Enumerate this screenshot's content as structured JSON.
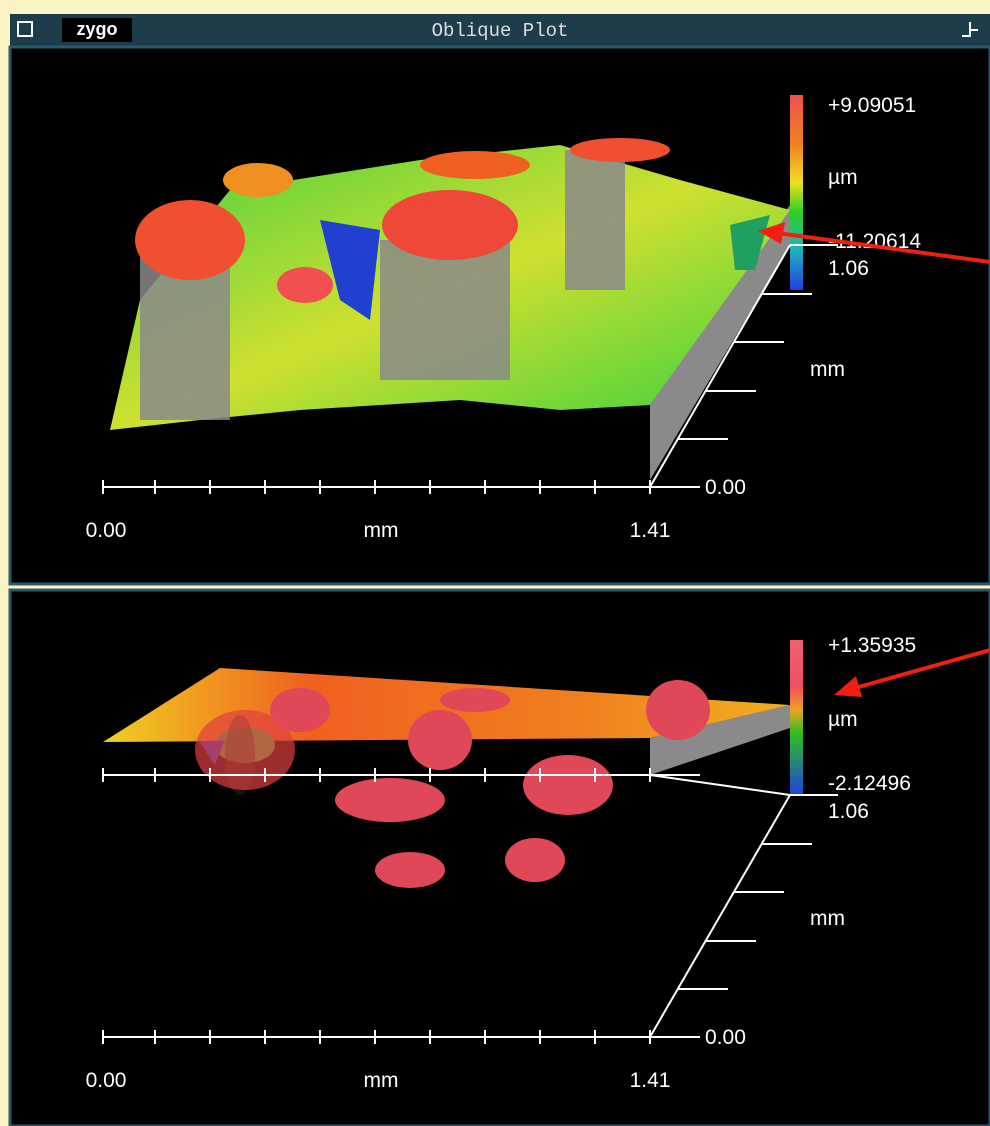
{
  "window": {
    "logo": "zygo",
    "title": "Oblique Plot"
  },
  "panels": [
    {
      "scale_max": "+9.09051",
      "scale_unit": "µm",
      "scale_min": "-11.20614",
      "y_max": "1.06",
      "y_unit": "mm",
      "y_min": "0.00",
      "x_min": "0.00",
      "x_unit": "mm",
      "x_max": "1.41"
    },
    {
      "scale_max": "+1.35935",
      "scale_unit": "µm",
      "scale_min": "-2.12496",
      "y_max": "1.06",
      "y_unit": "mm",
      "y_min": "0.00",
      "x_min": "0.00",
      "x_unit": "mm",
      "x_max": "1.41"
    }
  ]
}
